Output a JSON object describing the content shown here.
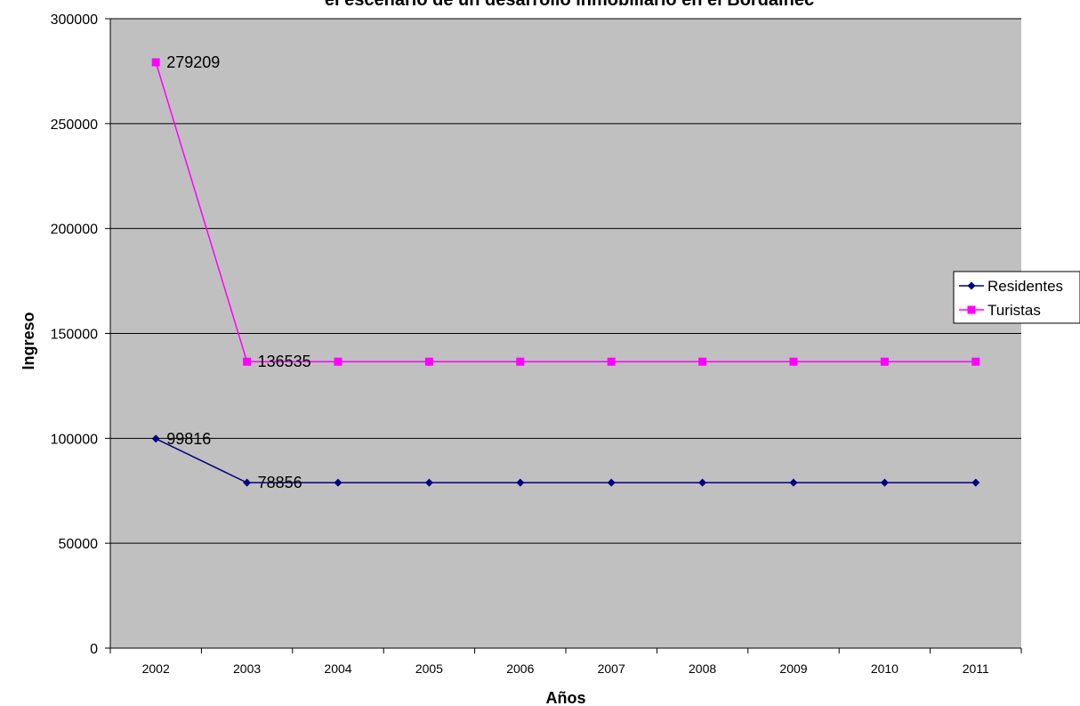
{
  "chart_data": {
    "type": "line",
    "title": "el escenario de un desarrollo inmobiliario en el Bordalhec",
    "xlabel": "Años",
    "ylabel": "Ingreso",
    "categories": [
      "2002",
      "2003",
      "2004",
      "2005",
      "2006",
      "2007",
      "2008",
      "2009",
      "2010",
      "2011"
    ],
    "ylim": [
      0,
      300000
    ],
    "yticks": [
      0,
      50000,
      100000,
      150000,
      200000,
      250000,
      300000
    ],
    "grid": true,
    "legend_position": "right",
    "plot_background": "#c0c0c0",
    "series": [
      {
        "name": "Residentes",
        "color": "#000080",
        "marker": "diamond",
        "values": [
          99816,
          78856,
          78856,
          78856,
          78856,
          78856,
          78856,
          78856,
          78856,
          78856
        ],
        "labels": [
          "99816",
          "78856",
          "",
          "",
          "",
          "",
          "",
          "",
          "",
          ""
        ]
      },
      {
        "name": "Turistas",
        "color": "#ff00ff",
        "marker": "square",
        "values": [
          279209,
          136535,
          136535,
          136535,
          136535,
          136535,
          136535,
          136535,
          136535,
          136535
        ],
        "labels": [
          "279209",
          "136535",
          "",
          "",
          "",
          "",
          "",
          "",
          "",
          ""
        ]
      }
    ]
  }
}
